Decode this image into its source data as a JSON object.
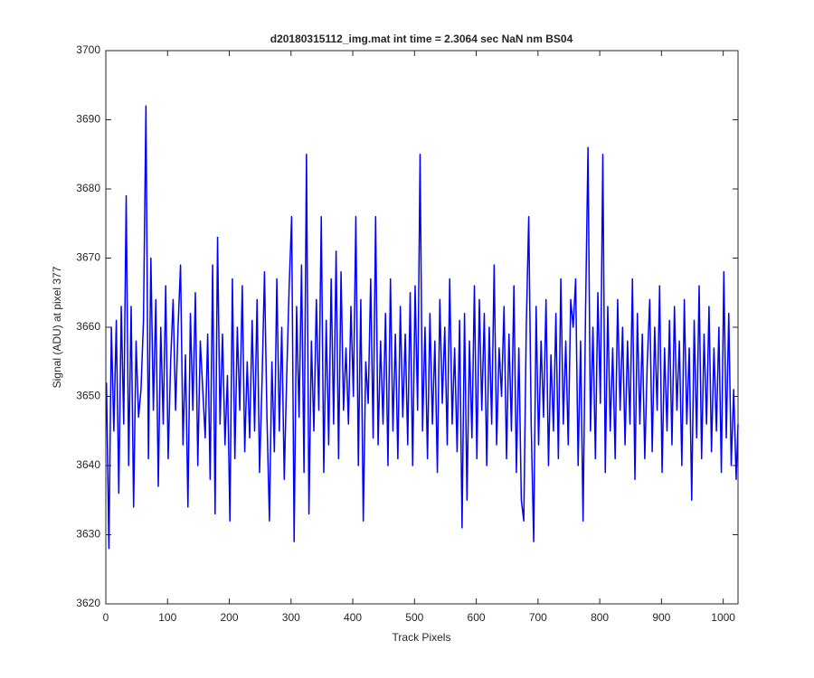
{
  "chart_data": {
    "type": "line",
    "title": "d20180315112_img.mat int time = 2.3064 sec  NaN nm BS04",
    "xlabel": "Track Pixels",
    "ylabel": "Signal (ADU) at pixel 377",
    "xlim": [
      0,
      1024
    ],
    "ylim": [
      3620,
      3700
    ],
    "xticks": [
      0,
      100,
      200,
      300,
      400,
      500,
      600,
      700,
      800,
      900,
      1000
    ],
    "yticks": [
      3620,
      3630,
      3640,
      3650,
      3660,
      3670,
      3680,
      3690,
      3700
    ],
    "grid": false,
    "x": [
      1,
      5,
      9,
      13,
      17,
      21,
      25,
      29,
      33,
      37,
      41,
      45,
      49,
      53,
      57,
      61,
      65,
      69,
      73,
      77,
      81,
      85,
      89,
      93,
      97,
      101,
      105,
      109,
      113,
      117,
      121,
      125,
      129,
      133,
      137,
      141,
      145,
      149,
      153,
      157,
      161,
      165,
      169,
      173,
      177,
      181,
      185,
      189,
      193,
      197,
      201,
      205,
      209,
      213,
      217,
      221,
      225,
      229,
      233,
      237,
      241,
      245,
      249,
      253,
      257,
      261,
      265,
      269,
      273,
      277,
      281,
      285,
      289,
      293,
      297,
      301,
      305,
      309,
      313,
      317,
      321,
      325,
      329,
      333,
      337,
      341,
      345,
      349,
      353,
      357,
      361,
      365,
      369,
      373,
      377,
      381,
      385,
      389,
      393,
      397,
      401,
      405,
      409,
      413,
      417,
      421,
      425,
      429,
      433,
      437,
      441,
      445,
      449,
      453,
      457,
      461,
      465,
      469,
      473,
      477,
      481,
      485,
      489,
      493,
      497,
      501,
      505,
      509,
      513,
      517,
      521,
      525,
      529,
      533,
      537,
      541,
      545,
      549,
      553,
      557,
      561,
      565,
      569,
      573,
      577,
      581,
      585,
      589,
      593,
      597,
      601,
      605,
      609,
      613,
      617,
      621,
      625,
      629,
      633,
      637,
      641,
      645,
      649,
      653,
      657,
      661,
      665,
      669,
      673,
      677,
      681,
      685,
      689,
      693,
      697,
      701,
      705,
      709,
      713,
      717,
      721,
      725,
      729,
      733,
      737,
      741,
      745,
      749,
      753,
      757,
      761,
      765,
      769,
      773,
      777,
      781,
      785,
      789,
      793,
      797,
      801,
      805,
      809,
      813,
      817,
      821,
      825,
      829,
      833,
      837,
      841,
      845,
      849,
      853,
      857,
      861,
      865,
      869,
      873,
      877,
      881,
      885,
      889,
      893,
      897,
      901,
      905,
      909,
      913,
      917,
      921,
      925,
      929,
      933,
      937,
      941,
      945,
      949,
      953,
      957,
      961,
      965,
      969,
      973,
      977,
      981,
      985,
      989,
      993,
      997,
      1001,
      1005,
      1009,
      1013,
      1017,
      1021,
      1024
    ],
    "series": [
      {
        "color": "#0000ff",
        "values": [
          3652,
          3628,
          3660,
          3645,
          3661,
          3636,
          3663,
          3646,
          3679,
          3640,
          3663,
          3634,
          3658,
          3647,
          3651,
          3661,
          3692,
          3641,
          3670,
          3648,
          3664,
          3637,
          3660,
          3646,
          3666,
          3641,
          3655,
          3664,
          3648,
          3660,
          3669,
          3643,
          3656,
          3634,
          3662,
          3648,
          3665,
          3640,
          3658,
          3651,
          3644,
          3659,
          3638,
          3669,
          3633,
          3673,
          3646,
          3659,
          3643,
          3653,
          3632,
          3667,
          3641,
          3660,
          3648,
          3666,
          3642,
          3655,
          3644,
          3661,
          3645,
          3664,
          3639,
          3652,
          3668,
          3647,
          3632,
          3655,
          3642,
          3667,
          3645,
          3660,
          3638,
          3653,
          3666,
          3676,
          3629,
          3663,
          3647,
          3669,
          3639,
          3685,
          3633,
          3658,
          3645,
          3664,
          3648,
          3676,
          3639,
          3661,
          3643,
          3667,
          3646,
          3671,
          3641,
          3668,
          3648,
          3657,
          3646,
          3663,
          3650,
          3676,
          3640,
          3664,
          3632,
          3655,
          3649,
          3667,
          3644,
          3676,
          3643,
          3658,
          3646,
          3662,
          3640,
          3667,
          3645,
          3659,
          3641,
          3663,
          3647,
          3659,
          3643,
          3665,
          3640,
          3666,
          3648,
          3685,
          3645,
          3660,
          3641,
          3662,
          3646,
          3658,
          3639,
          3664,
          3649,
          3660,
          3643,
          3667,
          3646,
          3657,
          3642,
          3661,
          3631,
          3662,
          3635,
          3658,
          3644,
          3666,
          3641,
          3664,
          3648,
          3662,
          3640,
          3660,
          3646,
          3669,
          3643,
          3657,
          3650,
          3663,
          3641,
          3659,
          3645,
          3666,
          3639,
          3657,
          3635,
          3632,
          3660,
          3676,
          3646,
          3629,
          3663,
          3643,
          3658,
          3647,
          3664,
          3640,
          3656,
          3645,
          3662,
          3641,
          3667,
          3646,
          3658,
          3643,
          3664,
          3660,
          3667,
          3640,
          3658,
          3632,
          3662,
          3686,
          3645,
          3660,
          3641,
          3665,
          3649,
          3685,
          3639,
          3663,
          3645,
          3657,
          3641,
          3664,
          3648,
          3660,
          3643,
          3658,
          3646,
          3667,
          3638,
          3662,
          3646,
          3659,
          3641,
          3655,
          3664,
          3642,
          3660,
          3648,
          3666,
          3639,
          3657,
          3645,
          3661,
          3643,
          3663,
          3648,
          3658,
          3640,
          3664,
          3646,
          3657,
          3635,
          3661,
          3644,
          3666,
          3641,
          3659,
          3646,
          3663,
          3642,
          3657,
          3645,
          3660,
          3639,
          3668,
          3644,
          3662,
          3640,
          3651,
          3638,
          3646
        ]
      }
    ]
  }
}
